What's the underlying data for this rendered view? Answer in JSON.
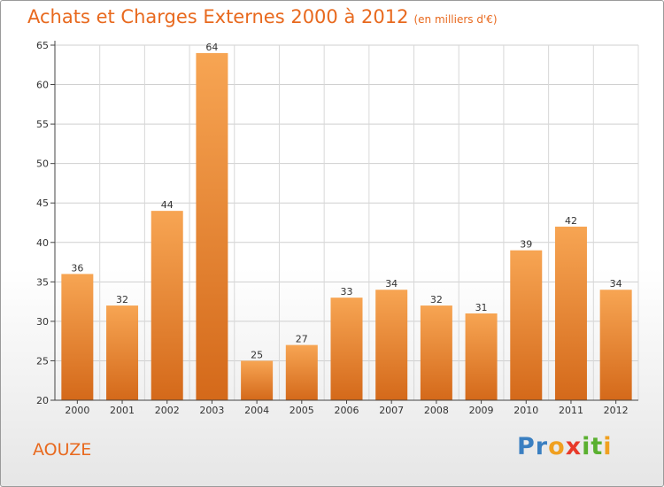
{
  "header": {
    "title": "Achats et Charges Externes 2000 à 2012",
    "unit": "(en milliers d'€)"
  },
  "footer": {
    "commune": "AOUZE",
    "logo_letters": [
      "P",
      "r",
      "o",
      "x",
      "i",
      "t",
      "i"
    ],
    "logo_colors": [
      "#3a7fc1",
      "#3a7fc1",
      "#f0a020",
      "#e83a2a",
      "#5ab030",
      "#5ab030",
      "#f0a020"
    ]
  },
  "chart_data": {
    "type": "bar",
    "title": "Achats et Charges Externes 2000 à 2012",
    "subtitle": "(en milliers d'€)",
    "xlabel": "",
    "ylabel": "",
    "categories": [
      "2000",
      "2001",
      "2002",
      "2003",
      "2004",
      "2005",
      "2006",
      "2007",
      "2008",
      "2009",
      "2010",
      "2011",
      "2012"
    ],
    "values": [
      36,
      32,
      44,
      64,
      25,
      27,
      33,
      34,
      32,
      31,
      39,
      42,
      34
    ],
    "ylim": [
      20,
      65
    ],
    "yticks": [
      20,
      25,
      30,
      35,
      40,
      45,
      50,
      55,
      60,
      65
    ],
    "grid": true,
    "bar_color_top": "#f7a553",
    "bar_color_bottom": "#d4691a",
    "data_labels": true
  }
}
